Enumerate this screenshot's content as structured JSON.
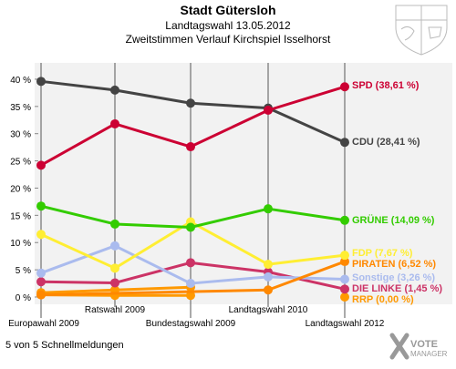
{
  "header": {
    "title": "Stadt Gütersloh",
    "subtitle": "Landtagswahl 13.05.2012",
    "subtitle2": "Zweitstimmen Verlauf Kirchspiel Isselhorst"
  },
  "footer": {
    "status": "5 von 5 Schnellmeldungen",
    "brand_line1": "VOTE",
    "brand_line2": "MANAGER"
  },
  "colors": {
    "plot_background": "#f2f2f2",
    "grid": "#ffffff",
    "axis": "#888888"
  },
  "chart_data": {
    "type": "line",
    "title": "Stadt Gütersloh",
    "categories": [
      "Europawahl 2009",
      "Ratswahl 2009",
      "Bundestagswahl 2009",
      "Landtagswahl 2010",
      "Landtagswahl 2012"
    ],
    "y_ticks": [
      "0 %",
      "5 %",
      "10 %",
      "15 %",
      "20 %",
      "25 %",
      "30 %",
      "35 %",
      "40 %"
    ],
    "ylim": [
      0,
      43
    ],
    "grid": false,
    "legend": "right, end of each line",
    "series": [
      {
        "name": "SPD",
        "label": "SPD (38,61 %)",
        "color": "#cc0033",
        "values": [
          24.2,
          31.8,
          27.6,
          34.3,
          38.61
        ]
      },
      {
        "name": "CDU",
        "label": "CDU (28,41 %)",
        "color": "#444444",
        "values": [
          39.6,
          38.0,
          35.6,
          34.7,
          28.41
        ]
      },
      {
        "name": "GRÜNE",
        "label": "GRÜNE (14,09 %)",
        "color": "#33cc00",
        "values": [
          16.7,
          13.4,
          12.8,
          16.2,
          14.09
        ]
      },
      {
        "name": "FDP",
        "label": "FDP (7,67 %)",
        "color": "#ffee33",
        "values": [
          11.5,
          5.3,
          13.8,
          6.0,
          7.67
        ]
      },
      {
        "name": "PIRATEN",
        "label": "PIRATEN (6,52 %)",
        "color": "#ff8800",
        "values": [
          0.4,
          null,
          null,
          1.3,
          6.52
        ]
      },
      {
        "name": "Sonstige",
        "label": "Sonstige (3,26 %)",
        "color": "#aabbee",
        "values": [
          4.4,
          9.4,
          2.5,
          3.7,
          3.26
        ]
      },
      {
        "name": "DIE LINKE",
        "label": "DIE LINKE (1,45 %)",
        "color": "#cc3366",
        "values": [
          2.8,
          2.6,
          6.3,
          4.6,
          1.45
        ]
      },
      {
        "name": "RRP",
        "label": "RRP (0,00 %)",
        "color": "#ff9900",
        "values": [
          0.8,
          1.3,
          1.8,
          null,
          0.0
        ]
      },
      {
        "name": "",
        "label": "",
        "color": "#ff9900",
        "values": [
          0.4,
          0.3,
          0.3,
          null,
          null
        ]
      }
    ]
  }
}
